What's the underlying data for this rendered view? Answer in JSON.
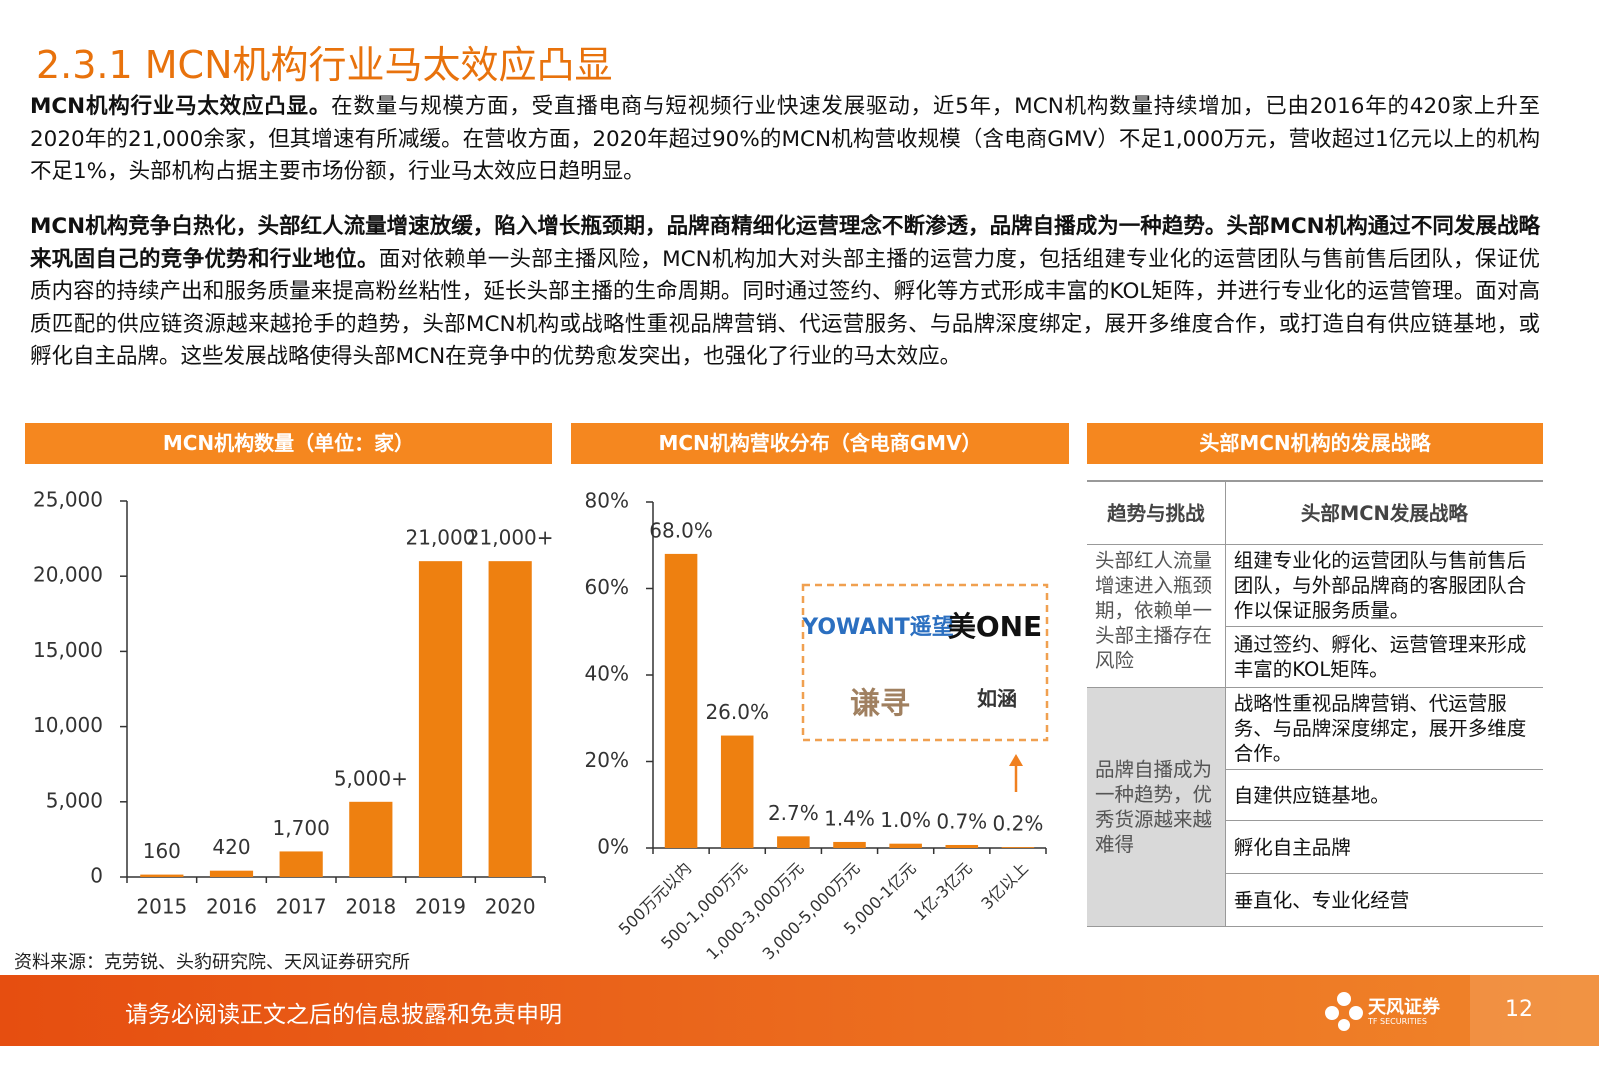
{
  "header": {
    "title": "2.3.1 MCN机构行业马太效应凸显"
  },
  "paragraphs": [
    {
      "bold": "MCN机构行业马太效应凸显。",
      "text": "在数量与规模方面，受直播电商与短视频行业快速发展驱动，近5年，MCN机构数量持续增加，已由2016年的420家上升至2020年的21,000余家，但其增速有所减缓。在营收方面，2020年超过90%的MCN机构营收规模（含电商GMV）不足1,000万元，营收超过1亿元以上的机构不足1%，头部机构占据主要市场份额，行业马太效应日趋明显。"
    },
    {
      "bold": "MCN机构竞争白热化，头部红人流量增速放缓，陷入增长瓶颈期，品牌商精细化运营理念不断渗透，品牌自播成为一种趋势。头部MCN机构通过不同发展战略来巩固自己的竞争优势和行业地位。",
      "text": "面对依赖单一头部主播风险，MCN机构加大对头部主播的运营力度，包括组建专业化的运营团队与售前售后团队，保证优质内容的持续产出和服务质量来提高粉丝粘性，延长头部主播的生命周期。同时通过签约、孵化等方式形成丰富的KOL矩阵，并进行专业化的运营管理。面对高质匹配的供应链资源越来越抢手的趋势，头部MCN机构或战略性重视品牌营销、代运营服务、与品牌深度绑定，展开多维度合作，或打造自有供应链基地，或孵化自主品牌。这些发展战略使得头部MCN在竞争中的优势愈发突出，也强化了行业的马太效应。"
    }
  ],
  "chart_data": [
    {
      "type": "bar",
      "title": "MCN机构数量（单位：家）",
      "categories": [
        "2015",
        "2016",
        "2017",
        "2018",
        "2019",
        "2020"
      ],
      "values": [
        160,
        420,
        1700,
        5000,
        21000,
        21000
      ],
      "value_labels": [
        "160",
        "420",
        "1,700",
        "5,000+",
        "21,000",
        "21,000+"
      ],
      "color": "#ee8010",
      "ylim": [
        0,
        25000
      ],
      "yticks": [
        0,
        {
          "value": 5000,
          "label": "5,000"
        },
        {
          "value": 10000,
          "label": "10,000"
        },
        {
          "value": 15000,
          "label": "15,000"
        },
        {
          "value": 20000,
          "label": "20,000"
        },
        {
          "value": 25000,
          "label": "25,000"
        }
      ]
    },
    {
      "type": "bar",
      "title": "MCN机构营收分布（含电商GMV）",
      "categories": [
        "500万元以内",
        "500-1,000万元",
        "1,000-3,000万元",
        "3,000-5,000万元",
        "5,000-1亿元",
        "1亿-3亿元",
        "3亿以上"
      ],
      "values": [
        68,
        26,
        2.7,
        1.4,
        1.0,
        0.7,
        0.2
      ],
      "value_labels": [
        "68.0%",
        "26.0%",
        "2.7%",
        "1.4%",
        "1.0%",
        "0.7%",
        "0.2%"
      ],
      "color": "#ee8010",
      "ylim": [
        0,
        80
      ],
      "yticks": [
        {
          "value": 0,
          "label": "0%"
        },
        {
          "value": 20,
          "label": "20%"
        },
        {
          "value": 40,
          "label": "40%"
        },
        {
          "value": 60,
          "label": "60%"
        },
        {
          "value": 80,
          "label": "80%"
        }
      ],
      "logos": [
        "YOWANT遥望",
        "美ONE",
        "谦寻",
        "如涵"
      ]
    }
  ],
  "table": {
    "title": "头部MCN机构的发展战略",
    "headers": [
      "趋势与挑战",
      "头部MCN发展战略"
    ],
    "groups": [
      {
        "trend": "头部红人流量增速进入瓶颈期，依赖单一头部主播存在风险",
        "strategies": [
          "组建专业化的运营团队与售前售后团队，与外部品牌商的客服团队合作以保证服务质量。",
          "通过签约、孵化、运营管理来形成丰富的KOL矩阵。"
        ]
      },
      {
        "trend": "品牌自播成为一种趋势，优秀货源越来越难得",
        "strategies": [
          "战略性重视品牌营销、代运营服务、与品牌深度绑定，展开多维度合作。",
          "自建供应链基地。",
          "孵化自主品牌",
          "垂直化、专业化经营"
        ]
      }
    ]
  },
  "footer": {
    "source": "资料来源：克劳锐、头豹研究院、天风证券研究所",
    "disclaimer": "请务必阅读正文之后的信息披露和免责申明",
    "brand": "天风证券",
    "brand_en": "TF SECURITIES",
    "page": "12"
  }
}
